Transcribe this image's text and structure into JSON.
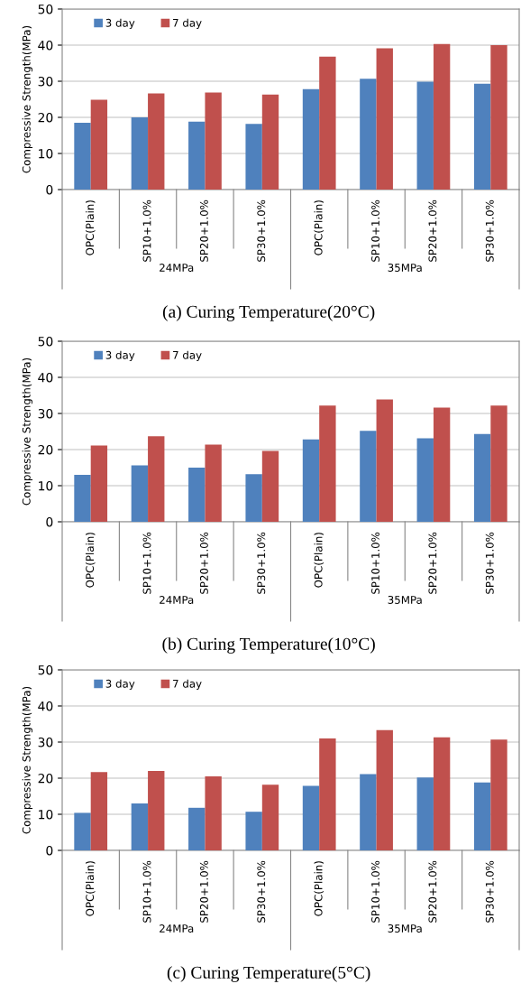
{
  "chart_data": [
    {
      "type": "bar",
      "title": "(a) Curing Temperature(20°C)",
      "ylabel": "Compressive Strength(MPa)",
      "categories": [
        "OPC(Plain)",
        "SP10+1.0%",
        "SP20+1.0%",
        "SP30+1.0%",
        "OPC(Plain)",
        "SP10+1.0%",
        "SP20+1.0%",
        "SP30+1.0%"
      ],
      "annotations": [
        "24MPa",
        "35MPa"
      ],
      "ylim": [
        0,
        50
      ],
      "yticks": [
        0,
        10,
        20,
        30,
        40,
        50
      ],
      "grid": "y",
      "legend": "top left",
      "series": [
        {
          "name": "3 day",
          "color": "#4f81bd",
          "values": [
            18.5,
            20.0,
            18.8,
            18.2,
            27.8,
            30.7,
            29.9,
            29.3
          ]
        },
        {
          "name": "7 day",
          "color": "#c0504d",
          "values": [
            24.9,
            26.6,
            26.9,
            26.3,
            36.8,
            39.1,
            40.3,
            40.0
          ]
        }
      ]
    },
    {
      "type": "bar",
      "title": "(b) Curing Temperature(10°C)",
      "ylabel": "Compressive Strength(MPa)",
      "categories": [
        "OPC(Plain)",
        "SP10+1.0%",
        "SP20+1.0%",
        "SP30+1.0%",
        "OPC(Plain)",
        "SP10+1.0%",
        "SP20+1.0%",
        "SP30+1.0%"
      ],
      "annotations": [
        "24MPa",
        "35MPa"
      ],
      "ylim": [
        0,
        50
      ],
      "yticks": [
        0,
        10,
        20,
        30,
        40,
        50
      ],
      "grid": "y",
      "legend": "top left",
      "series": [
        {
          "name": "3 day",
          "color": "#4f81bd",
          "values": [
            13.0,
            15.6,
            15.0,
            13.2,
            22.8,
            25.2,
            23.1,
            24.3
          ]
        },
        {
          "name": "7 day",
          "color": "#c0504d",
          "values": [
            21.1,
            23.7,
            21.4,
            19.6,
            32.2,
            33.9,
            31.6,
            32.2
          ]
        }
      ]
    },
    {
      "type": "bar",
      "title": "(c) Curing Temperature(5°C)",
      "ylabel": "Compressive Strength(MPa)",
      "categories": [
        "OPC(Plain)",
        "SP10+1.0%",
        "SP20+1.0%",
        "SP30+1.0%",
        "OPC(Plain)",
        "SP10+1.0%",
        "SP20+1.0%",
        "SP30+1.0%"
      ],
      "annotations": [
        "24MPa",
        "35MPa"
      ],
      "ylim": [
        0,
        50
      ],
      "yticks": [
        0,
        10,
        20,
        30,
        40,
        50
      ],
      "grid": "y",
      "legend": "top left",
      "series": [
        {
          "name": "3 day",
          "color": "#4f81bd",
          "values": [
            10.4,
            13.0,
            11.8,
            10.7,
            17.9,
            21.1,
            20.2,
            18.8
          ]
        },
        {
          "name": "7 day",
          "color": "#c0504d",
          "values": [
            21.7,
            22.0,
            20.5,
            18.2,
            31.0,
            33.3,
            31.3,
            30.7
          ]
        }
      ]
    }
  ]
}
